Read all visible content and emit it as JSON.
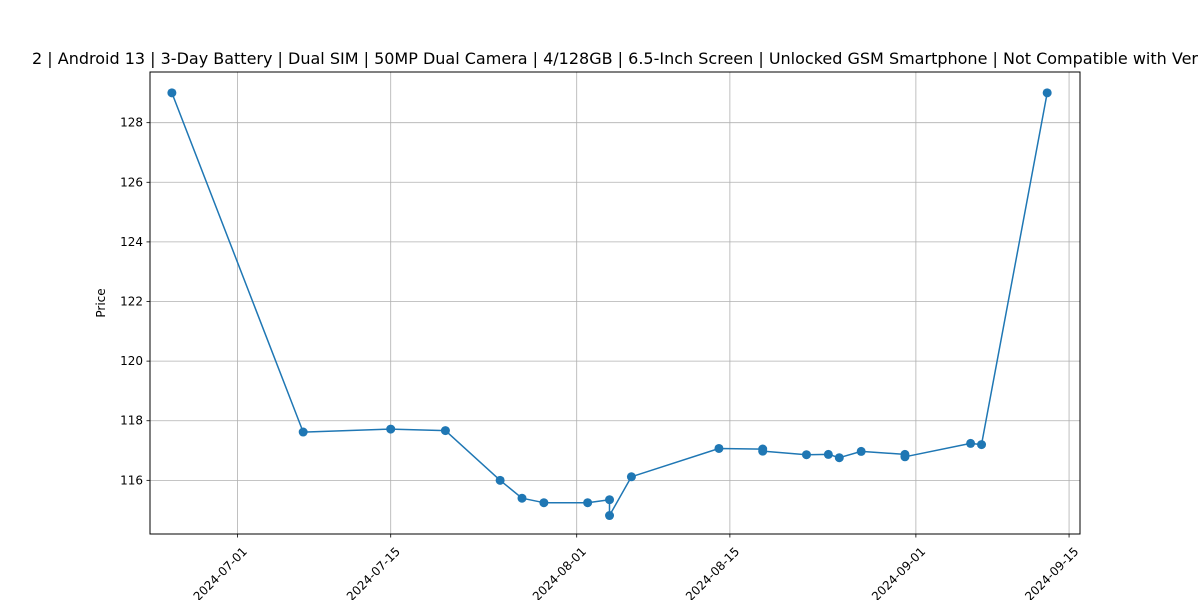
{
  "chart_data": {
    "type": "line",
    "title": "2 | Android 13 | 3-Day Battery | Dual SIM | 50MP Dual Camera | 4/128GB | 6.5-Inch Screen | Unlocked GSM Smartphone | Not Compatible with Ver",
    "xlabel": "",
    "ylabel": "Price",
    "xlim": [
      "2024-06-23",
      "2024-09-16"
    ],
    "ylim": [
      114.2,
      129.7
    ],
    "grid": true,
    "x_ticks": [
      "2024-07-01",
      "2024-07-15",
      "2024-08-01",
      "2024-08-15",
      "2024-09-01",
      "2024-09-15"
    ],
    "y_ticks": [
      116,
      118,
      120,
      122,
      124,
      126,
      128
    ],
    "series": [
      {
        "color": "#1f77b4",
        "marker": "circle",
        "points": [
          {
            "x": "2024-06-25",
            "y": 129.0
          },
          {
            "x": "2024-07-07",
            "y": 117.62
          },
          {
            "x": "2024-07-15",
            "y": 117.72
          },
          {
            "x": "2024-07-20",
            "y": 117.67
          },
          {
            "x": "2024-07-25",
            "y": 116.0
          },
          {
            "x": "2024-07-27",
            "y": 115.4
          },
          {
            "x": "2024-07-29",
            "y": 115.25
          },
          {
            "x": "2024-08-02",
            "y": 115.25
          },
          {
            "x": "2024-08-04",
            "y": 115.35
          },
          {
            "x": "2024-08-04",
            "y": 114.82
          },
          {
            "x": "2024-08-06",
            "y": 116.12
          },
          {
            "x": "2024-08-14",
            "y": 117.07
          },
          {
            "x": "2024-08-18",
            "y": 117.05
          },
          {
            "x": "2024-08-18",
            "y": 116.98
          },
          {
            "x": "2024-08-22",
            "y": 116.86
          },
          {
            "x": "2024-08-24",
            "y": 116.87
          },
          {
            "x": "2024-08-25",
            "y": 116.76
          },
          {
            "x": "2024-08-27",
            "y": 116.97
          },
          {
            "x": "2024-08-31",
            "y": 116.87
          },
          {
            "x": "2024-08-31",
            "y": 116.79
          },
          {
            "x": "2024-09-06",
            "y": 117.24
          },
          {
            "x": "2024-09-07",
            "y": 117.2
          },
          {
            "x": "2024-09-13",
            "y": 129.0
          }
        ]
      }
    ]
  }
}
